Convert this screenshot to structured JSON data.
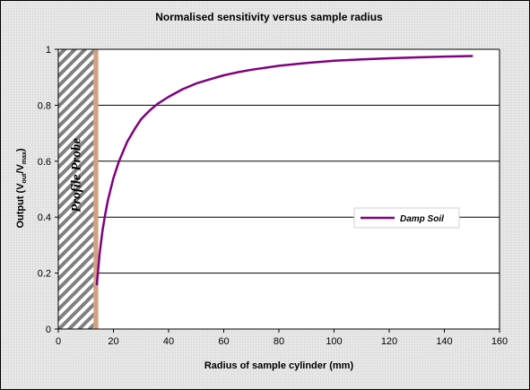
{
  "chart_data": {
    "type": "line",
    "title": "Normalised sensitivity versus sample radius",
    "xlabel": "Radius of sample cylinder (mm)",
    "ylabel": "Output (V",
    "ylabel_sub1": "out",
    "ylabel_mid": "/V",
    "ylabel_sub2": "max",
    "ylabel_end": ")",
    "xlim": [
      0,
      160
    ],
    "ylim": [
      0,
      1
    ],
    "x_ticks": [
      "0",
      "20",
      "40",
      "60",
      "80",
      "100",
      "120",
      "140",
      "160"
    ],
    "y_ticks": [
      "0",
      "0.2",
      "0.4",
      "0.6",
      "0.8",
      "1"
    ],
    "grid": "horizontal",
    "legend_position": "right-middle",
    "probe_region": {
      "label": "Profile Probe",
      "x_start": 0,
      "x_end": 12.8,
      "wall_x_start": 12.8,
      "wall_x_end": 14.5
    },
    "series": [
      {
        "name": "Damp Soil",
        "color": "#800080",
        "x": [
          14,
          15,
          16,
          17,
          18,
          20,
          22,
          25,
          28,
          30,
          33,
          36,
          40,
          45,
          50,
          55,
          60,
          65,
          70,
          80,
          90,
          100,
          110,
          120,
          130,
          140,
          150
        ],
        "y": [
          0.16,
          0.27,
          0.35,
          0.41,
          0.46,
          0.54,
          0.6,
          0.67,
          0.72,
          0.75,
          0.78,
          0.805,
          0.83,
          0.857,
          0.878,
          0.893,
          0.907,
          0.918,
          0.927,
          0.941,
          0.951,
          0.959,
          0.964,
          0.968,
          0.971,
          0.974,
          0.976
        ]
      }
    ],
    "colors": {
      "outer_background": "#ffffff",
      "plot_background": "#ffffff",
      "grid": "#000000",
      "probe_hatch": "#808080",
      "probe_wall": "#d2a07f"
    }
  }
}
